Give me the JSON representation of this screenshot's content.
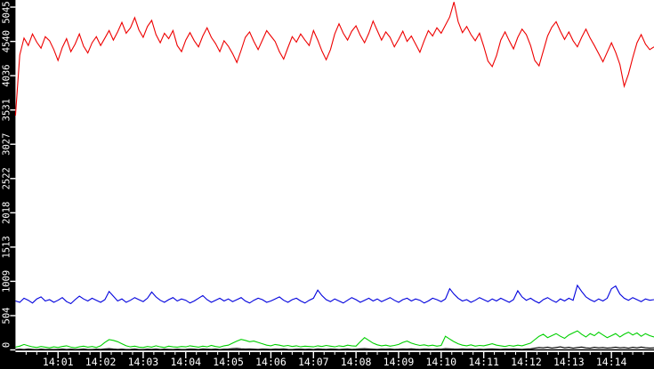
{
  "chart_data": {
    "type": "line",
    "legend": "none",
    "plot_background": "#ffffff",
    "outer_background": "#000000",
    "axis_line_color": "#000000",
    "tick_color": "#ffffff",
    "label_color": "#ffffff",
    "x_axis": {
      "start_time": "14:00",
      "end_time": "14:15",
      "tick_labels": [
        "14:01",
        "14:02",
        "14:03",
        "14:04",
        "14:05",
        "14:06",
        "14:07",
        "14:08",
        "14:09",
        "14:10",
        "14:11",
        "14:12",
        "14:13",
        "14:14"
      ],
      "minor_tick_interval_seconds": 15,
      "major_tick_interval_seconds": 60
    },
    "y_axis": {
      "tick_labels": [
        "0",
        "504",
        "1009",
        "1513",
        "2018",
        "2522",
        "3027",
        "3531",
        "4036",
        "4540",
        "5045"
      ],
      "tick_values": [
        0,
        504,
        1009,
        1513,
        2018,
        2522,
        3027,
        3531,
        4036,
        4540,
        5045
      ],
      "range": [
        0,
        5200
      ]
    },
    "sample_interval_seconds": 6,
    "series": [
      {
        "name": "red-series",
        "color": "#ee0000",
        "approx_mean": 4550,
        "values": [
          3450,
          4340,
          4590,
          4480,
          4650,
          4530,
          4440,
          4610,
          4550,
          4420,
          4260,
          4450,
          4580,
          4390,
          4500,
          4650,
          4470,
          4370,
          4520,
          4610,
          4480,
          4590,
          4700,
          4560,
          4680,
          4820,
          4660,
          4740,
          4890,
          4710,
          4600,
          4760,
          4850,
          4640,
          4520,
          4660,
          4580,
          4700,
          4480,
          4390,
          4560,
          4670,
          4550,
          4460,
          4620,
          4740,
          4600,
          4510,
          4390,
          4550,
          4470,
          4360,
          4230,
          4410,
          4600,
          4680,
          4540,
          4420,
          4560,
          4700,
          4620,
          4540,
          4390,
          4280,
          4450,
          4610,
          4530,
          4650,
          4560,
          4480,
          4700,
          4560,
          4400,
          4270,
          4420,
          4650,
          4800,
          4660,
          4560,
          4690,
          4770,
          4630,
          4520,
          4660,
          4840,
          4700,
          4560,
          4680,
          4600,
          4460,
          4570,
          4690,
          4540,
          4620,
          4500,
          4380,
          4550,
          4700,
          4620,
          4740,
          4660,
          4780,
          4900,
          5120,
          4830,
          4670,
          4760,
          4640,
          4550,
          4660,
          4470,
          4250,
          4170,
          4330,
          4560,
          4680,
          4550,
          4430,
          4600,
          4720,
          4640,
          4480,
          4260,
          4180,
          4400,
          4620,
          4750,
          4830,
          4690,
          4570,
          4680,
          4550,
          4460,
          4600,
          4720,
          4590,
          4480,
          4360,
          4240,
          4380,
          4520,
          4380,
          4200,
          3880,
          4060,
          4300,
          4520,
          4640,
          4500,
          4420,
          4460
        ]
      },
      {
        "name": "blue-series",
        "color": "#0000dd",
        "approx_mean": 740,
        "values": [
          720,
          700,
          760,
          730,
          690,
          750,
          780,
          720,
          740,
          700,
          730,
          770,
          710,
          680,
          740,
          790,
          750,
          720,
          760,
          730,
          700,
          740,
          860,
          790,
          720,
          750,
          700,
          730,
          770,
          740,
          710,
          760,
          852,
          780,
          730,
          700,
          740,
          770,
          720,
          750,
          730,
          690,
          720,
          760,
          800,
          740,
          700,
          730,
          760,
          720,
          750,
          710,
          740,
          770,
          720,
          690,
          730,
          760,
          740,
          700,
          720,
          750,
          780,
          730,
          700,
          740,
          760,
          720,
          690,
          730,
          760,
          880,
          800,
          740,
          710,
          750,
          720,
          690,
          730,
          770,
          740,
          700,
          730,
          760,
          720,
          750,
          710,
          740,
          770,
          730,
          700,
          740,
          760,
          720,
          750,
          730,
          690,
          720,
          760,
          740,
          710,
          750,
          900,
          820,
          760,
          720,
          740,
          700,
          730,
          770,
          740,
          710,
          750,
          720,
          760,
          730,
          700,
          740,
          870,
          780,
          730,
          760,
          720,
          690,
          740,
          770,
          730,
          700,
          750,
          720,
          760,
          730,
          950,
          860,
          780,
          740,
          710,
          750,
          720,
          760,
          900,
          940,
          820,
          760,
          730,
          770,
          740,
          710,
          750,
          730,
          740
        ]
      },
      {
        "name": "green-series",
        "color": "#00d000",
        "approx_mean": 90,
        "values": [
          40,
          55,
          80,
          60,
          45,
          35,
          50,
          40,
          30,
          45,
          35,
          50,
          60,
          40,
          30,
          45,
          55,
          40,
          50,
          35,
          60,
          110,
          150,
          140,
          120,
          90,
          60,
          45,
          55,
          40,
          35,
          50,
          40,
          60,
          45,
          35,
          55,
          45,
          40,
          50,
          45,
          60,
          50,
          40,
          55,
          45,
          65,
          50,
          40,
          60,
          70,
          100,
          130,
          155,
          140,
          120,
          130,
          110,
          90,
          70,
          60,
          80,
          70,
          55,
          65,
          50,
          60,
          45,
          55,
          50,
          45,
          60,
          50,
          65,
          55,
          45,
          60,
          50,
          70,
          60,
          55,
          120,
          180,
          140,
          100,
          75,
          60,
          70,
          55,
          65,
          80,
          110,
          130,
          100,
          80,
          65,
          75,
          60,
          70,
          55,
          65,
          200,
          160,
          120,
          90,
          70,
          60,
          75,
          55,
          65,
          60,
          75,
          90,
          70,
          60,
          50,
          65,
          55,
          70,
          60,
          80,
          100,
          150,
          200,
          230,
          180,
          210,
          240,
          200,
          170,
          220,
          250,
          280,
          230,
          190,
          240,
          210,
          260,
          220,
          180,
          210,
          240,
          190,
          230,
          260,
          220,
          250,
          200,
          240,
          210,
          190
        ]
      },
      {
        "name": "black-series",
        "color": "#000000",
        "approx_mean": 15,
        "values": [
          5,
          10,
          6,
          12,
          8,
          4,
          10,
          6,
          8,
          5,
          8,
          12,
          6,
          10,
          5,
          8,
          12,
          7,
          5,
          10,
          8,
          14,
          18,
          12,
          8,
          10,
          6,
          8,
          12,
          7,
          5,
          10,
          8,
          12,
          6,
          10,
          8,
          5,
          10,
          7,
          8,
          12,
          10,
          6,
          14,
          10,
          8,
          12,
          6,
          10,
          12,
          18,
          22,
          16,
          12,
          14,
          10,
          8,
          12,
          10,
          8,
          12,
          10,
          14,
          8,
          6,
          10,
          12,
          8,
          10,
          6,
          14,
          10,
          8,
          12,
          10,
          6,
          10,
          14,
          8,
          10,
          16,
          20,
          14,
          10,
          8,
          12,
          10,
          14,
          8,
          10,
          14,
          12,
          16,
          10,
          8,
          12,
          10,
          8,
          12,
          10,
          20,
          16,
          12,
          10,
          14,
          10,
          12,
          8,
          10,
          8,
          12,
          14,
          10,
          8,
          12,
          10,
          14,
          10,
          8,
          12,
          16,
          25,
          35,
          30,
          40,
          28,
          35,
          45,
          30,
          38,
          25,
          35,
          42,
          30,
          25,
          38,
          30,
          35,
          28,
          32,
          40,
          30,
          35,
          25,
          38,
          30,
          42,
          32,
          28,
          30
        ]
      }
    ]
  }
}
